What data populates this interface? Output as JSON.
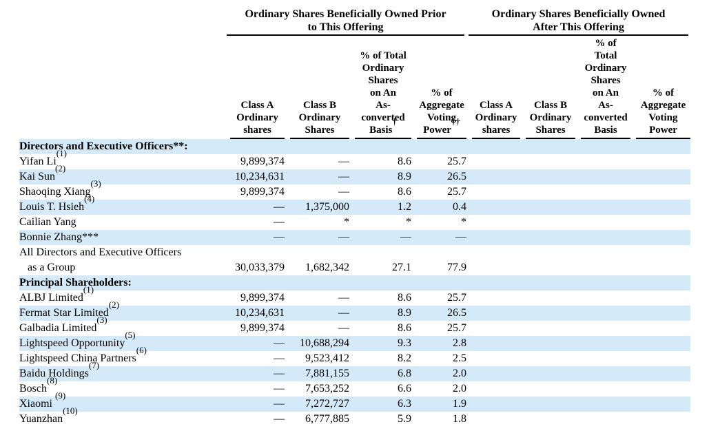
{
  "page": {
    "background": "#ffffff",
    "stripe_color": "#d5eaf8",
    "text_color": "#000000"
  },
  "table": {
    "group_headers": [
      {
        "title": "Ordinary Shares Beneficially Owned Prior\nto This Offering"
      },
      {
        "title": "Ordinary Shares Beneficially Owned\nAfter This Offering"
      }
    ],
    "columns": [
      {
        "lines": "Class A\nOrdinary\nshares",
        "sup": ""
      },
      {
        "lines": "Class B\nOrdinary\nShares",
        "sup": ""
      },
      {
        "lines": "% of Total\nOrdinary\nShares\non An\nAs-\nconverted\nBasis",
        "sup": "†"
      },
      {
        "lines": "% of\nAggregate\nVoting\nPower",
        "sup": "††"
      },
      {
        "lines": "Class A\nOrdinary\nshares",
        "sup": ""
      },
      {
        "lines": "Class B\nOrdinary\nShares",
        "sup": ""
      },
      {
        "lines": "% of\nTotal\nOrdinary\nShares\non An\nAs-\nconverted\nBasis",
        "sup": ""
      },
      {
        "lines": "% of\nAggregate\nVoting\nPower",
        "sup": ""
      }
    ],
    "rows": [
      {
        "label": "Directors and Executive Officers**:",
        "sup": "",
        "bold": true,
        "tall": false,
        "cells": [
          "",
          "",
          "",
          "",
          "",
          "",
          "",
          ""
        ]
      },
      {
        "label": "Yifan Li",
        "sup": "(1)",
        "bold": false,
        "tall": false,
        "cells": [
          "9,899,374",
          "—",
          "8.6",
          "25.7",
          "",
          "",
          "",
          ""
        ]
      },
      {
        "label": "Kai Sun",
        "sup": "(2)",
        "bold": false,
        "tall": false,
        "cells": [
          "10,234,631",
          "—",
          "8.9",
          "26.5",
          "",
          "",
          "",
          ""
        ]
      },
      {
        "label": "Shaoqing Xiang",
        "sup": "(3)",
        "bold": false,
        "tall": false,
        "cells": [
          "9,899,374",
          "—",
          "8.6",
          "25.7",
          "",
          "",
          "",
          ""
        ]
      },
      {
        "label": "Louis T. Hsieh",
        "sup": "(4)",
        "bold": false,
        "tall": false,
        "cells": [
          "—",
          "1,375,000",
          "1.2",
          "0.4",
          "",
          "",
          "",
          ""
        ]
      },
      {
        "label": "Cailian Yang",
        "sup": "",
        "bold": false,
        "tall": false,
        "cells": [
          "—",
          "*",
          "*",
          "*",
          "",
          "",
          "",
          ""
        ]
      },
      {
        "label": "Bonnie Zhang***",
        "sup": "",
        "bold": false,
        "tall": false,
        "cells": [
          "—",
          "—",
          "—",
          "—",
          "",
          "",
          "",
          ""
        ]
      },
      {
        "label": "All Directors and Executive Officers\n   as a Group",
        "sup": "",
        "bold": false,
        "tall": true,
        "cells": [
          "30,033,379",
          "1,682,342",
          "27.1",
          "77.9",
          "",
          "",
          "",
          ""
        ]
      },
      {
        "label": "Principal Shareholders:",
        "sup": "",
        "bold": true,
        "tall": false,
        "cells": [
          "",
          "",
          "",
          "",
          "",
          "",
          "",
          ""
        ]
      },
      {
        "label": "ALBJ Limited",
        "sup": "(1)",
        "bold": false,
        "tall": false,
        "cells": [
          "9,899,374",
          "—",
          "8.6",
          "25.7",
          "",
          "",
          "",
          ""
        ]
      },
      {
        "label": "Fermat Star Limited",
        "sup": "(2)",
        "bold": false,
        "tall": false,
        "cells": [
          "10,234,631",
          "—",
          "8.9",
          "26.5",
          "",
          "",
          "",
          ""
        ]
      },
      {
        "label": "Galbadia Limited",
        "sup": "(3)",
        "bold": false,
        "tall": false,
        "cells": [
          "9,899,374",
          "—",
          "8.6",
          "25.7",
          "",
          "",
          "",
          ""
        ]
      },
      {
        "label": "Lightspeed Opportunity",
        "sup": "(5)",
        "bold": false,
        "tall": false,
        "cells": [
          "—",
          "10,688,294",
          "9.3",
          "2.8",
          "",
          "",
          "",
          ""
        ]
      },
      {
        "label": "Lightspeed China Partners",
        "sup": "(6)",
        "bold": false,
        "tall": false,
        "cells": [
          "—",
          "9,523,412",
          "8.2",
          "2.5",
          "",
          "",
          "",
          ""
        ]
      },
      {
        "label": "Baidu Holdings",
        "sup": "(7)",
        "bold": false,
        "tall": false,
        "cells": [
          "—",
          "7,881,155",
          "6.8",
          "2.0",
          "",
          "",
          "",
          ""
        ]
      },
      {
        "label": "Bosch",
        "sup": "(8)",
        "bold": false,
        "tall": false,
        "cells": [
          "—",
          "7,653,252",
          "6.6",
          "2.0",
          "",
          "",
          "",
          ""
        ]
      },
      {
        "label": "Xiaomi ",
        "sup": "(9)",
        "bold": false,
        "tall": false,
        "cells": [
          "—",
          "7,272,727",
          "6.3",
          "1.9",
          "",
          "",
          "",
          ""
        ]
      },
      {
        "label": "Yuanzhan",
        "sup": "(10)",
        "bold": false,
        "tall": false,
        "cells": [
          "—",
          "6,777,885",
          "5.9",
          "1.8",
          "",
          "",
          "",
          ""
        ]
      }
    ]
  }
}
